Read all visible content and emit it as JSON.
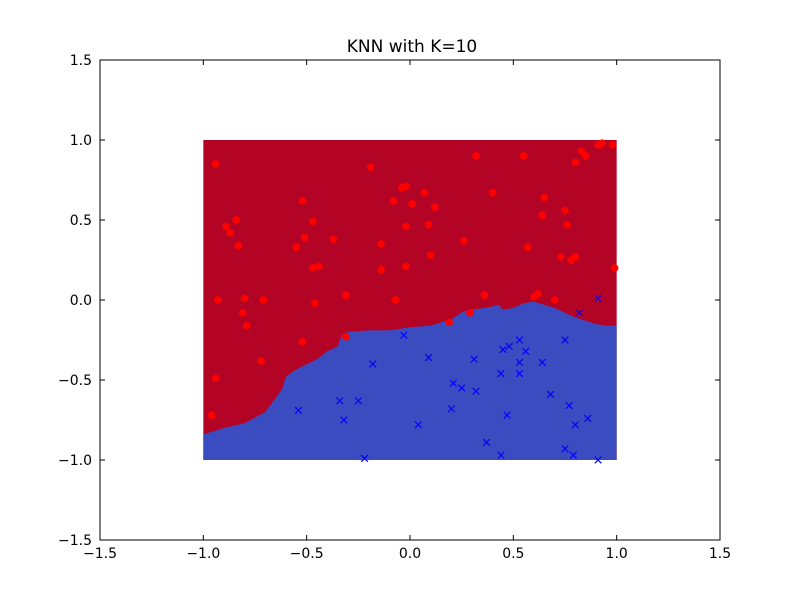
{
  "chart_data": {
    "type": "scatter",
    "title": "KNN with K=10",
    "xlabel": "",
    "ylabel": "",
    "xlim": [
      -1.5,
      1.5
    ],
    "ylim": [
      -1.5,
      1.5
    ],
    "xticks": [
      -1.5,
      -1.0,
      -0.5,
      0.0,
      0.5,
      1.0,
      1.5
    ],
    "yticks": [
      -1.5,
      -1.0,
      -0.5,
      0.0,
      0.5,
      1.0,
      1.5
    ],
    "x_tick_labels": [
      "−1.5",
      "−1.0",
      "−0.5",
      "0.0",
      "0.5",
      "1.0",
      "1.5"
    ],
    "y_tick_labels": [
      "−1.5",
      "−1.0",
      "−0.5",
      "0.0",
      "0.5",
      "1.0",
      "1.5"
    ],
    "grid": false,
    "decision_region": {
      "extent": {
        "x": [
          -1.0,
          1.0
        ],
        "y": [
          -1.0,
          1.0
        ]
      },
      "upper_color": "#b40426",
      "lower_color": "#3b4cc0",
      "boundary": [
        [
          -1.0,
          -0.84
        ],
        [
          -0.95,
          -0.82
        ],
        [
          -0.9,
          -0.8
        ],
        [
          -0.8,
          -0.77
        ],
        [
          -0.7,
          -0.7
        ],
        [
          -0.66,
          -0.63
        ],
        [
          -0.62,
          -0.56
        ],
        [
          -0.6,
          -0.48
        ],
        [
          -0.57,
          -0.45
        ],
        [
          -0.53,
          -0.42
        ],
        [
          -0.45,
          -0.37
        ],
        [
          -0.4,
          -0.32
        ],
        [
          -0.35,
          -0.29
        ],
        [
          -0.33,
          -0.22
        ],
        [
          -0.3,
          -0.2
        ],
        [
          -0.2,
          -0.19
        ],
        [
          -0.1,
          -0.19
        ],
        [
          0.0,
          -0.17
        ],
        [
          0.1,
          -0.16
        ],
        [
          0.2,
          -0.12
        ],
        [
          0.26,
          -0.07
        ],
        [
          0.3,
          -0.06
        ],
        [
          0.36,
          -0.05
        ],
        [
          0.4,
          -0.04
        ],
        [
          0.43,
          -0.03
        ],
        [
          0.45,
          -0.06
        ],
        [
          0.5,
          -0.05
        ],
        [
          0.55,
          -0.02
        ],
        [
          0.6,
          -0.01
        ],
        [
          0.65,
          -0.03
        ],
        [
          0.7,
          -0.05
        ],
        [
          0.75,
          -0.08
        ],
        [
          0.8,
          -0.11
        ],
        [
          0.85,
          -0.13
        ],
        [
          0.9,
          -0.15
        ],
        [
          0.95,
          -0.16
        ],
        [
          1.0,
          -0.16
        ]
      ]
    },
    "series": [
      {
        "marker": "circle",
        "color": "#ff0000",
        "points": [
          [
            -0.94,
            0.85
          ],
          [
            -0.96,
            -0.72
          ],
          [
            -0.94,
            -0.49
          ],
          [
            -0.93,
            0.0
          ],
          [
            -0.89,
            0.46
          ],
          [
            -0.87,
            0.42
          ],
          [
            -0.84,
            0.5
          ],
          [
            -0.83,
            0.34
          ],
          [
            -0.81,
            -0.08
          ],
          [
            -0.8,
            0.01
          ],
          [
            -0.79,
            -0.16
          ],
          [
            -0.72,
            -0.38
          ],
          [
            -0.71,
            0.0
          ],
          [
            -0.55,
            0.33
          ],
          [
            -0.52,
            0.62
          ],
          [
            -0.52,
            -0.26
          ],
          [
            -0.51,
            0.39
          ],
          [
            -0.47,
            0.49
          ],
          [
            -0.47,
            0.2
          ],
          [
            -0.46,
            -0.02
          ],
          [
            -0.44,
            0.21
          ],
          [
            -0.37,
            0.38
          ],
          [
            -0.31,
            0.03
          ],
          [
            -0.31,
            -0.23
          ],
          [
            -0.19,
            0.83
          ],
          [
            -0.14,
            0.35
          ],
          [
            -0.14,
            0.19
          ],
          [
            -0.07,
            0.0
          ],
          [
            -0.08,
            0.62
          ],
          [
            -0.04,
            0.7
          ],
          [
            -0.02,
            0.71
          ],
          [
            -0.02,
            0.46
          ],
          [
            -0.02,
            0.21
          ],
          [
            0.01,
            0.6
          ],
          [
            0.07,
            0.67
          ],
          [
            0.09,
            0.47
          ],
          [
            0.1,
            0.28
          ],
          [
            0.12,
            0.58
          ],
          [
            0.19,
            -0.14
          ],
          [
            0.26,
            0.37
          ],
          [
            0.29,
            -0.08
          ],
          [
            0.32,
            0.9
          ],
          [
            0.36,
            0.03
          ],
          [
            0.4,
            0.67
          ],
          [
            0.55,
            0.9
          ],
          [
            0.57,
            0.33
          ],
          [
            0.6,
            0.02
          ],
          [
            0.62,
            0.04
          ],
          [
            0.64,
            0.53
          ],
          [
            0.65,
            0.64
          ],
          [
            0.7,
            0.0
          ],
          [
            0.73,
            0.27
          ],
          [
            0.75,
            0.56
          ],
          [
            0.76,
            0.47
          ],
          [
            0.78,
            0.25
          ],
          [
            0.8,
            0.27
          ],
          [
            0.8,
            0.86
          ],
          [
            0.83,
            0.93
          ],
          [
            0.85,
            0.9
          ],
          [
            0.91,
            0.97
          ],
          [
            0.93,
            0.98
          ],
          [
            0.98,
            0.97
          ],
          [
            0.99,
            0.2
          ]
        ]
      },
      {
        "marker": "x",
        "color": "#0000ff",
        "points": [
          [
            -0.54,
            -0.69
          ],
          [
            -0.34,
            -0.63
          ],
          [
            -0.32,
            -0.75
          ],
          [
            -0.25,
            -0.63
          ],
          [
            -0.22,
            -0.99
          ],
          [
            -0.18,
            -0.4
          ],
          [
            -0.03,
            -0.22
          ],
          [
            0.04,
            -0.78
          ],
          [
            0.09,
            -0.36
          ],
          [
            0.2,
            -0.68
          ],
          [
            0.21,
            -0.52
          ],
          [
            0.25,
            -0.55
          ],
          [
            0.31,
            -0.37
          ],
          [
            0.32,
            -0.57
          ],
          [
            0.37,
            -0.89
          ],
          [
            0.44,
            -0.46
          ],
          [
            0.44,
            -0.97
          ],
          [
            0.45,
            -0.31
          ],
          [
            0.47,
            -0.72
          ],
          [
            0.48,
            -0.29
          ],
          [
            0.53,
            -0.25
          ],
          [
            0.53,
            -0.39
          ],
          [
            0.53,
            -0.46
          ],
          [
            0.56,
            -0.32
          ],
          [
            0.64,
            -0.39
          ],
          [
            0.68,
            -0.59
          ],
          [
            0.75,
            -0.25
          ],
          [
            0.75,
            -0.93
          ],
          [
            0.77,
            -0.66
          ],
          [
            0.79,
            -0.97
          ],
          [
            0.8,
            -0.78
          ],
          [
            0.82,
            -0.08
          ],
          [
            0.86,
            -0.74
          ],
          [
            0.91,
            0.01
          ],
          [
            0.91,
            -1.0
          ]
        ]
      }
    ]
  }
}
